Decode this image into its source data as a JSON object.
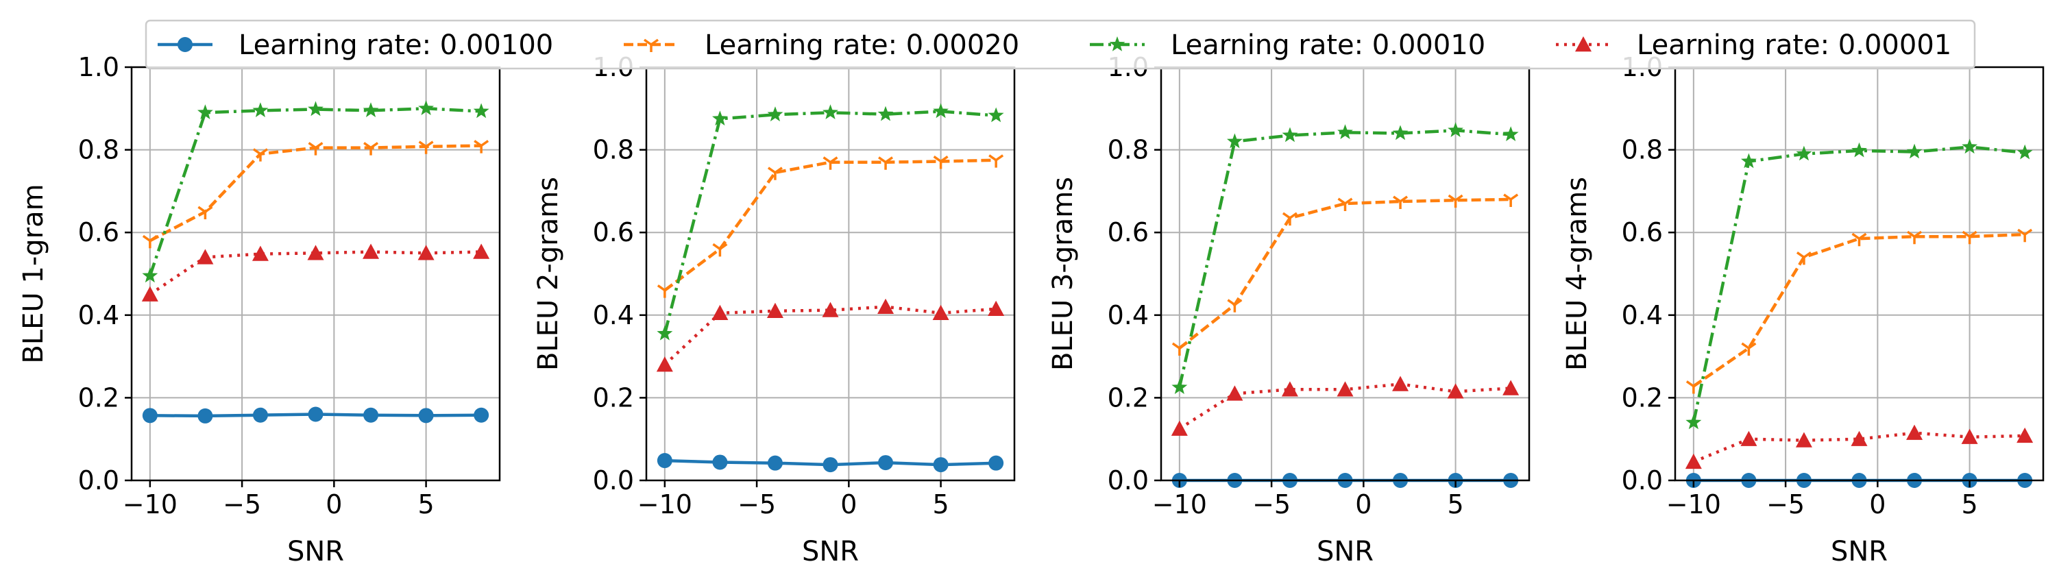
{
  "chart_data": {
    "type": "line",
    "x": [
      -10,
      -7,
      -4,
      -1,
      2,
      5,
      8
    ],
    "xlabel": "SNR",
    "xticks": [
      -10,
      -5,
      0,
      5
    ],
    "xlim": [
      -11,
      9
    ],
    "ylim": [
      0,
      1
    ],
    "yticks": [
      0.0,
      0.2,
      0.4,
      0.6,
      0.8,
      1.0
    ],
    "grid": true,
    "legend_position": "top",
    "series": [
      {
        "name": "Learning rate: 0.00100",
        "color": "#1f77b4",
        "linestyle": "solid",
        "marker": "circle"
      },
      {
        "name": "Learning rate: 0.00020",
        "color": "#ff7f0e",
        "linestyle": "dashed",
        "marker": "tri-down"
      },
      {
        "name": "Learning rate: 0.00010",
        "color": "#2ca02c",
        "linestyle": "dashdot",
        "marker": "star"
      },
      {
        "name": "Learning rate: 0.00001",
        "color": "#d62728",
        "linestyle": "dotted",
        "marker": "triangle"
      }
    ],
    "panels": [
      {
        "ylabel": "BLEU 1-gram",
        "values": [
          [
            0.157,
            0.156,
            0.158,
            0.16,
            0.158,
            0.157,
            0.158
          ],
          [
            0.58,
            0.65,
            0.79,
            0.805,
            0.805,
            0.808,
            0.81
          ],
          [
            0.495,
            0.89,
            0.895,
            0.898,
            0.895,
            0.9,
            0.893
          ],
          [
            0.45,
            0.54,
            0.548,
            0.55,
            0.553,
            0.55,
            0.553
          ]
        ]
      },
      {
        "ylabel": "BLEU 2-grams",
        "values": [
          [
            0.048,
            0.044,
            0.042,
            0.038,
            0.043,
            0.038,
            0.042
          ],
          [
            0.46,
            0.56,
            0.745,
            0.77,
            0.77,
            0.772,
            0.775
          ],
          [
            0.355,
            0.875,
            0.885,
            0.89,
            0.886,
            0.893,
            0.883
          ],
          [
            0.28,
            0.405,
            0.41,
            0.412,
            0.42,
            0.405,
            0.415
          ]
        ]
      },
      {
        "ylabel": "BLEU 3-grams",
        "values": [
          [
            0.0,
            0.0,
            0.0,
            0.0,
            0.0,
            0.0,
            0.0
          ],
          [
            0.32,
            0.425,
            0.635,
            0.67,
            0.675,
            0.678,
            0.68
          ],
          [
            0.225,
            0.82,
            0.835,
            0.842,
            0.84,
            0.847,
            0.837
          ],
          [
            0.125,
            0.21,
            0.22,
            0.22,
            0.233,
            0.215,
            0.223
          ]
        ]
      },
      {
        "ylabel": "BLEU 4-grams",
        "values": [
          [
            0.0,
            0.0,
            0.0,
            0.0,
            0.0,
            0.0,
            0.0
          ],
          [
            0.228,
            0.32,
            0.54,
            0.585,
            0.59,
            0.59,
            0.595
          ],
          [
            0.14,
            0.772,
            0.79,
            0.798,
            0.795,
            0.807,
            0.793
          ],
          [
            0.045,
            0.1,
            0.097,
            0.1,
            0.115,
            0.105,
            0.108
          ]
        ]
      }
    ]
  }
}
